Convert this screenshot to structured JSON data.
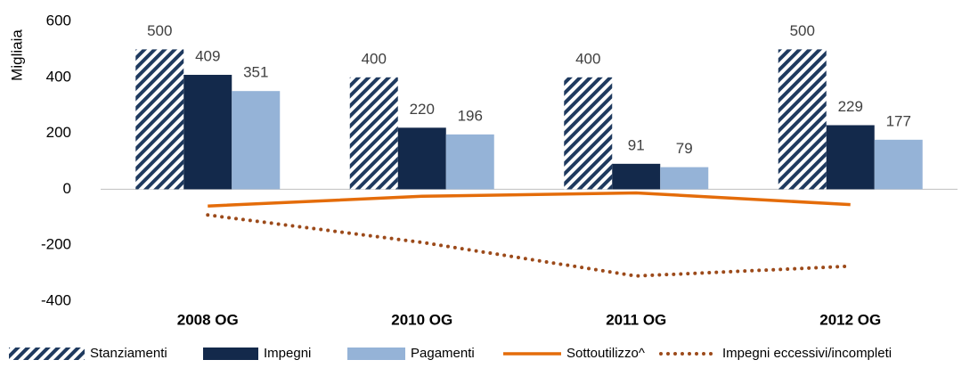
{
  "chart_data": {
    "type": "bar",
    "y_label": "Migliaia",
    "categories": [
      "2008 OG",
      "2010 OG",
      "2011 OG",
      "2012 OG"
    ],
    "series": [
      {
        "name": "Stanziamenti",
        "type": "bar",
        "color": "#1f3a5f",
        "pattern": "hatch",
        "values": [
          500,
          400,
          400,
          500
        ]
      },
      {
        "name": "Impegni",
        "type": "bar",
        "color": "#13294b",
        "values": [
          409,
          220,
          91,
          229
        ]
      },
      {
        "name": "Pagamenti",
        "type": "bar",
        "color": "#95b3d7",
        "values": [
          351,
          196,
          79,
          177
        ]
      },
      {
        "name": "Sottoutilizzo^",
        "type": "line",
        "color": "#e46c0a",
        "values": [
          -60,
          -25,
          -13,
          -55
        ]
      },
      {
        "name": "Impegni eccessivi/incompleti",
        "type": "line",
        "style": "dotted",
        "color": "#9c4a1a",
        "values": [
          -92,
          -190,
          -310,
          -275
        ]
      }
    ],
    "ylim": [
      -400,
      600
    ],
    "yticks": [
      -400,
      -200,
      0,
      200,
      400,
      600
    ],
    "legend": "bottom"
  }
}
